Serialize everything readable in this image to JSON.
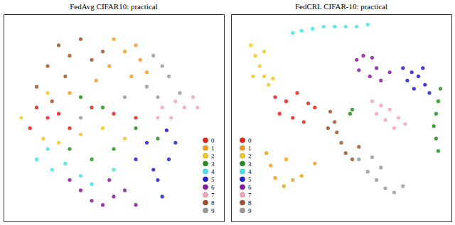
{
  "chart_data": [
    {
      "type": "scatter",
      "title": "FedAvg CIFAR10: practical",
      "xlim": [
        0,
        100
      ],
      "ylim": [
        0,
        100
      ],
      "tick_labels": false,
      "legend": "lower right",
      "series": [
        {
          "name": "0",
          "color": "#e8211b",
          "x": [
            15,
            20,
            25,
            30,
            12,
            40,
            50,
            60
          ],
          "values": [
            55,
            50,
            52,
            45,
            45,
            55,
            52,
            50
          ]
        },
        {
          "name": "1",
          "color": "#f59b1e",
          "x": [
            50,
            55,
            60,
            48,
            62,
            58,
            65,
            42,
            30
          ],
          "values": [
            88,
            82,
            85,
            75,
            78,
            70,
            72,
            68,
            62
          ]
        },
        {
          "name": "2",
          "color": "#f2c81e",
          "x": [
            8,
            18,
            25,
            35,
            45,
            55,
            20
          ],
          "values": [
            50,
            40,
            38,
            42,
            45,
            40,
            62
          ]
        },
        {
          "name": "3",
          "color": "#23921e",
          "x": [
            30,
            40,
            50,
            60,
            45,
            70,
            35
          ],
          "values": [
            35,
            30,
            35,
            45,
            55,
            40,
            60
          ]
        },
        {
          "name": "4",
          "color": "#3ee6e6",
          "x": [
            15,
            22,
            28,
            35,
            40,
            20,
            50
          ],
          "values": [
            30,
            25,
            28,
            22,
            18,
            35,
            25
          ]
        },
        {
          "name": "5",
          "color": "#2020d0",
          "x": [
            60,
            68,
            75,
            78,
            70,
            74,
            65,
            72
          ],
          "values": [
            30,
            25,
            30,
            38,
            20,
            44,
            38,
            12
          ]
        },
        {
          "name": "6",
          "color": "#8a1a9c",
          "x": [
            40,
            45,
            50,
            55,
            35,
            60,
            30,
            48
          ],
          "values": [
            10,
            8,
            12,
            15,
            15,
            8,
            20,
            20
          ]
        },
        {
          "name": "7",
          "color": "#f5a3c2",
          "x": [
            72,
            78,
            82,
            86,
            76,
            70,
            88
          ],
          "values": [
            55,
            58,
            55,
            60,
            50,
            50,
            55
          ]
        },
        {
          "name": "8",
          "color": "#a0522d",
          "x": [
            25,
            30,
            20,
            35,
            40,
            28,
            15,
            45,
            22
          ],
          "values": [
            85,
            80,
            75,
            88,
            78,
            70,
            65,
            82,
            58
          ]
        },
        {
          "name": "9",
          "color": "#9a9a9a",
          "x": [
            68,
            72,
            75,
            65,
            70,
            80,
            55,
            35
          ],
          "values": [
            80,
            75,
            70,
            65,
            60,
            62,
            60,
            50
          ]
        }
      ]
    },
    {
      "type": "scatter",
      "title": "FedCRL CIFAR-10: practical",
      "xlim": [
        0,
        100
      ],
      "ylim": [
        0,
        100
      ],
      "tick_labels": false,
      "legend": "lower left",
      "series": [
        {
          "name": "0",
          "color": "#e8211b",
          "x": [
            20,
            25,
            30,
            35,
            38,
            22,
            28,
            33
          ],
          "values": [
            60,
            58,
            62,
            57,
            55,
            52,
            50,
            48
          ]
        },
        {
          "name": "1",
          "color": "#f59b1e",
          "x": [
            16,
            18,
            20,
            24,
            28,
            32,
            38,
            25
          ],
          "values": [
            33,
            27,
            21,
            17,
            20,
            22,
            28,
            30
          ]
        },
        {
          "name": "2",
          "color": "#f2c81e",
          "x": [
            9,
            11,
            13,
            15,
            17,
            19,
            15,
            10
          ],
          "values": [
            85,
            80,
            75,
            70,
            66,
            69,
            82,
            70
          ]
        },
        {
          "name": "3",
          "color": "#23921e",
          "x": [
            95,
            94,
            93,
            92,
            93,
            94,
            55,
            54
          ],
          "values": [
            64,
            58,
            52,
            46,
            40,
            34,
            54,
            52
          ]
        },
        {
          "name": "4",
          "color": "#3ee6e6",
          "x": [
            28,
            32,
            37,
            42,
            47,
            52,
            57,
            62
          ],
          "values": [
            91,
            92,
            93,
            94,
            94,
            94,
            94,
            95
          ]
        },
        {
          "name": "5",
          "color": "#2020d0",
          "x": [
            78,
            82,
            85,
            88,
            90,
            83,
            80,
            87
          ],
          "values": [
            74,
            72,
            70,
            66,
            62,
            64,
            68,
            74
          ]
        },
        {
          "name": "6",
          "color": "#8a1a9c",
          "x": [
            57,
            60,
            64,
            66,
            63,
            68,
            72,
            58
          ],
          "values": [
            78,
            80,
            79,
            74,
            70,
            68,
            72,
            73
          ]
        },
        {
          "name": "7",
          "color": "#f5a3c2",
          "x": [
            64,
            68,
            72,
            76,
            79,
            70,
            74,
            66
          ],
          "values": [
            58,
            56,
            54,
            50,
            47,
            49,
            45,
            52
          ]
        },
        {
          "name": "8",
          "color": "#a0522d",
          "x": [
            45,
            47,
            48,
            50,
            52,
            55,
            44,
            58
          ],
          "values": [
            53,
            48,
            43,
            38,
            33,
            30,
            45,
            36
          ]
        },
        {
          "name": "9",
          "color": "#9a9a9a",
          "x": [
            58,
            62,
            66,
            70,
            74,
            78,
            68,
            64
          ],
          "values": [
            30,
            24,
            20,
            16,
            14,
            17,
            26,
            31
          ]
        }
      ]
    }
  ]
}
